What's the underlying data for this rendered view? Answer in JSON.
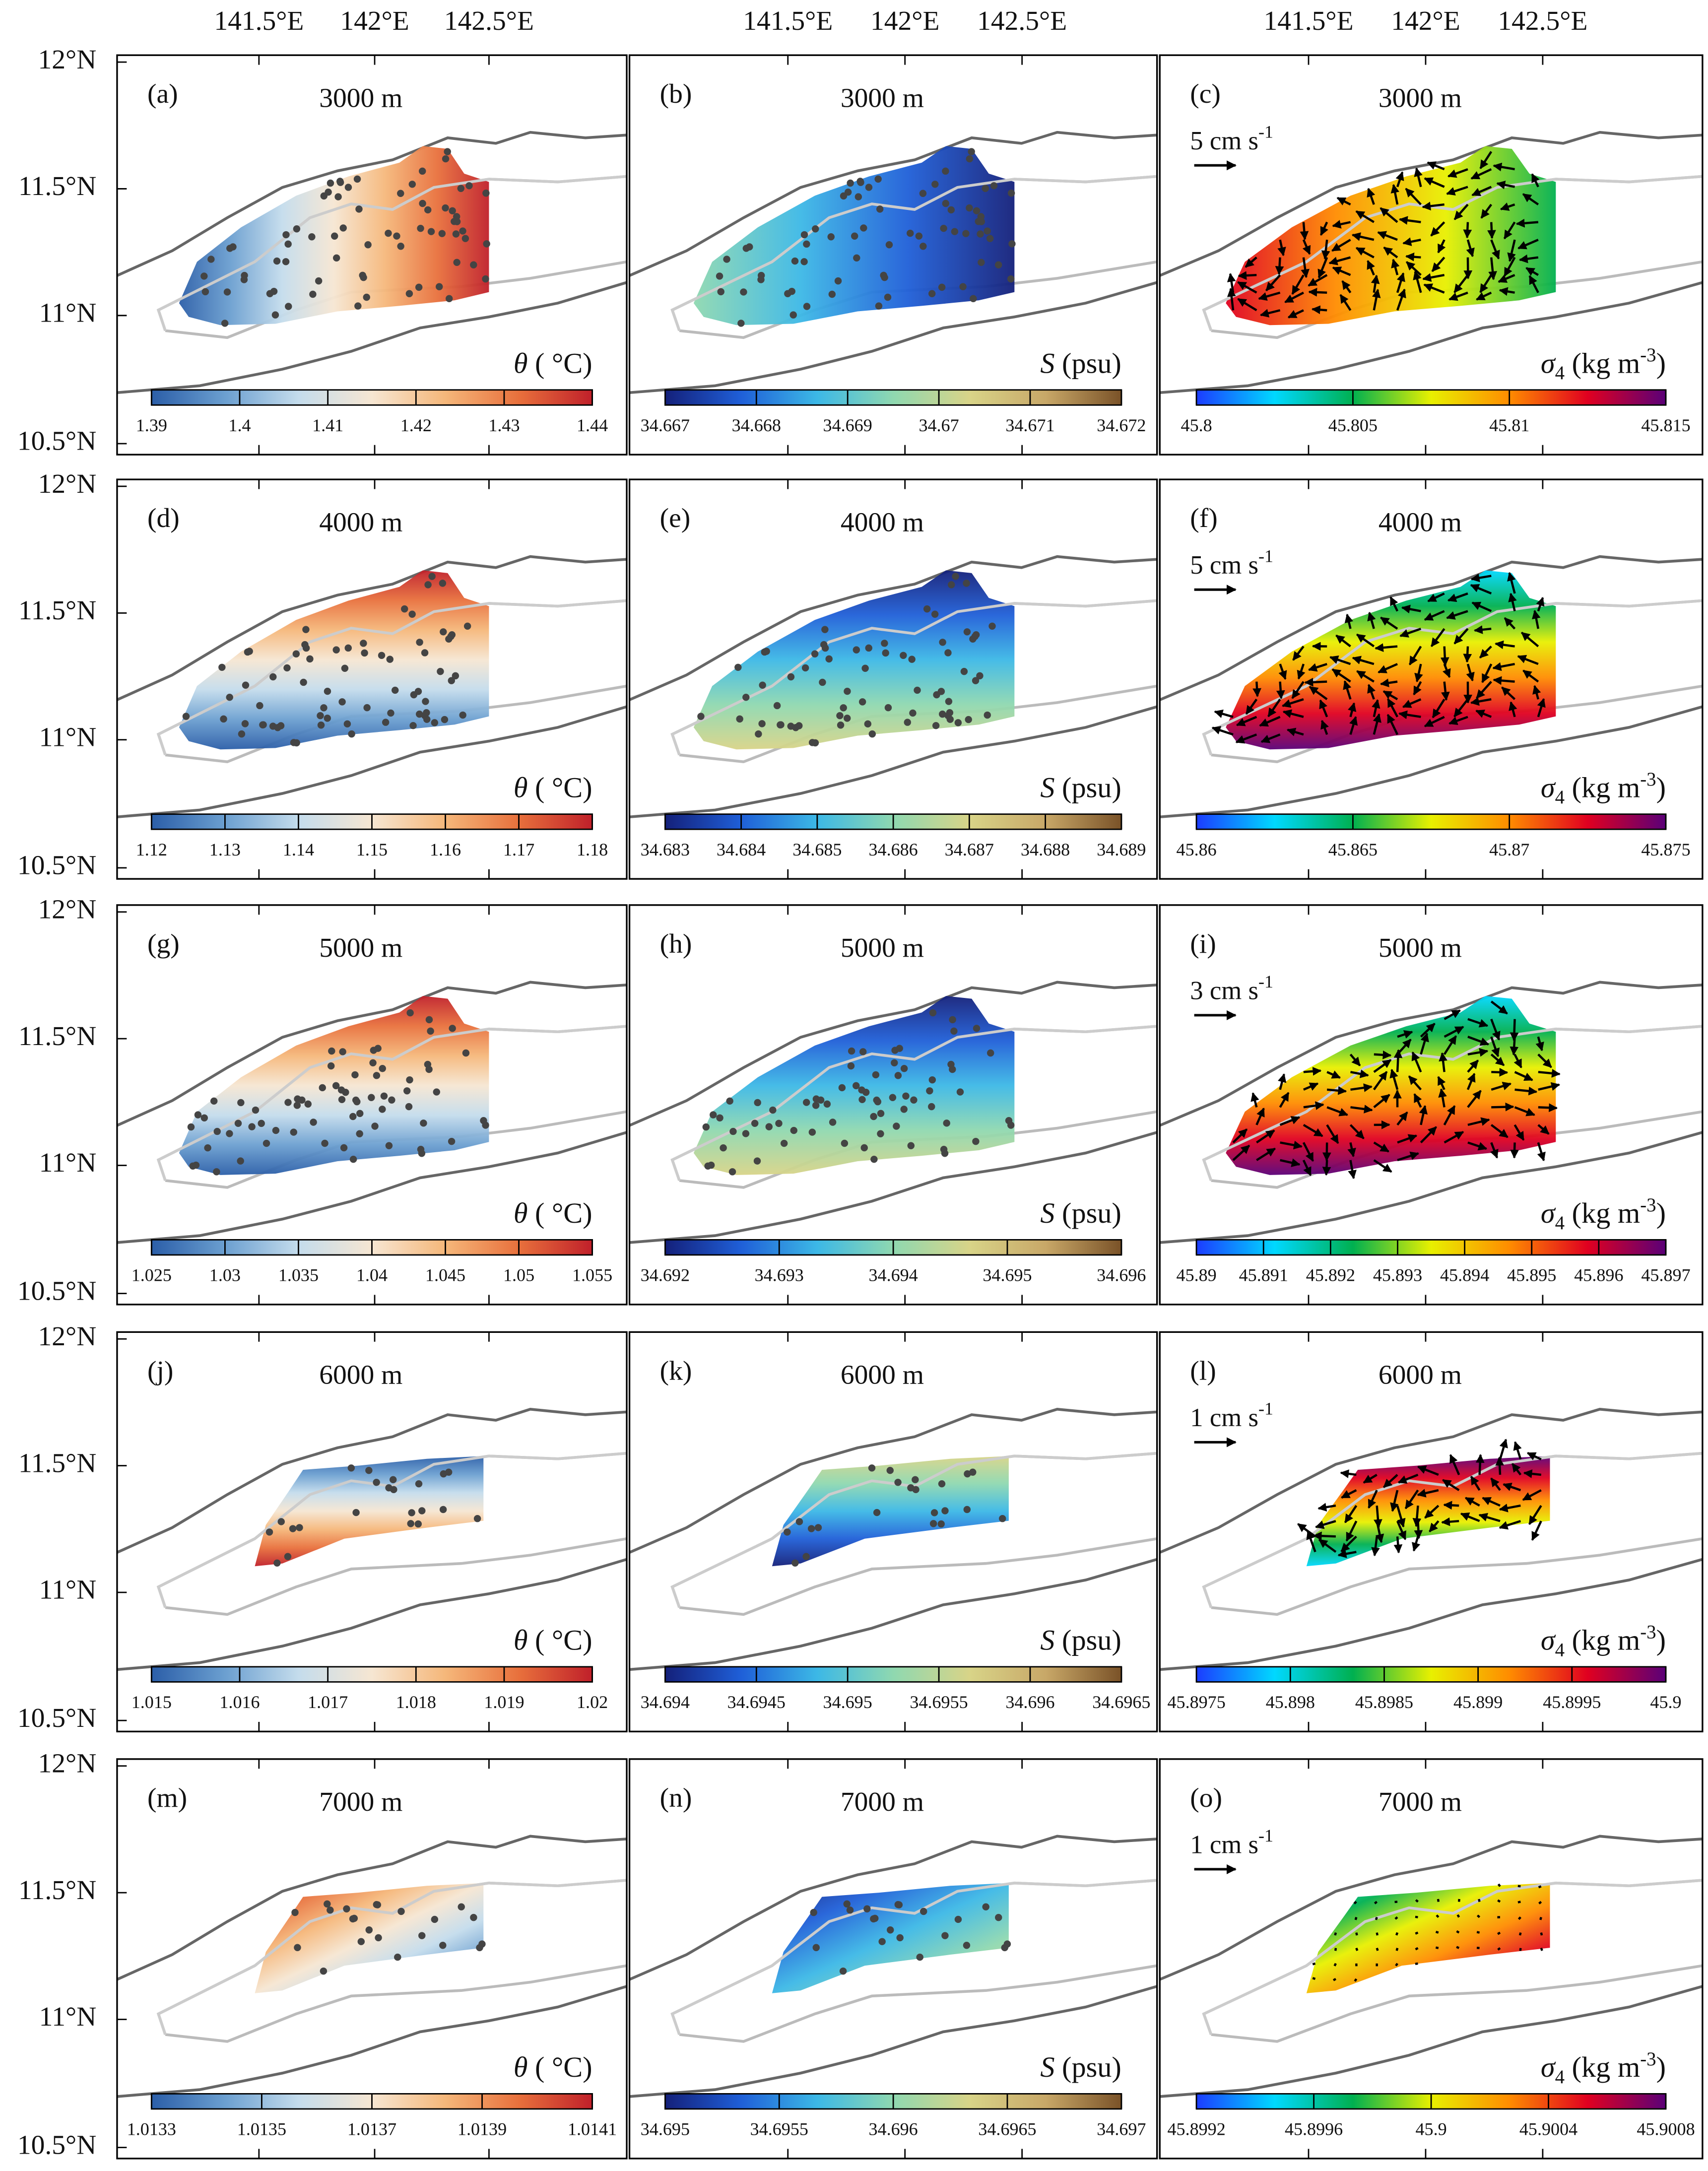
{
  "axes": {
    "lon_labels": [
      "141.5°E",
      "142°E",
      "142.5°E"
    ],
    "lat_labels": [
      "12°N",
      "11.5°N",
      "11°N",
      "10.5°N"
    ]
  },
  "rows": [
    {
      "panels": [
        {
          "label": "(a)",
          "depth": "3000 m",
          "colorbar": {
            "label": {
              "symbol": "θ",
              "unit": " ( °C)"
            },
            "ticks": [
              1.39,
              1.4,
              1.41,
              1.42,
              1.43,
              1.44
            ]
          }
        },
        {
          "label": "(b)",
          "depth": "3000 m",
          "colorbar": {
            "label": {
              "symbol": "S",
              "unit": " (psu)"
            },
            "ticks": [
              34.667,
              34.668,
              34.669,
              34.67,
              34.671,
              34.672
            ]
          }
        },
        {
          "label": "(c)",
          "depth": "3000 m",
          "scale_arrow": {
            "text": "5 cm s",
            "superscript": "-1"
          },
          "colorbar": {
            "label": {
              "symbol": "σ",
              "subscript": "4",
              "unit": " (kg m",
              "superscript": "-3",
              "close": ")"
            },
            "ticks": [
              45.8,
              45.805,
              45.81,
              45.815
            ]
          }
        }
      ]
    },
    {
      "panels": [
        {
          "label": "(d)",
          "depth": "4000 m",
          "colorbar": {
            "label": {
              "symbol": "θ",
              "unit": " ( °C)"
            },
            "ticks": [
              1.12,
              1.13,
              1.14,
              1.15,
              1.16,
              1.17,
              1.18
            ]
          }
        },
        {
          "label": "(e)",
          "depth": "4000 m",
          "colorbar": {
            "label": {
              "symbol": "S",
              "unit": " (psu)"
            },
            "ticks": [
              34.683,
              34.684,
              34.685,
              34.686,
              34.687,
              34.688,
              34.689
            ]
          }
        },
        {
          "label": "(f)",
          "depth": "4000 m",
          "scale_arrow": {
            "text": "5 cm s",
            "superscript": "-1"
          },
          "colorbar": {
            "label": {
              "symbol": "σ",
              "subscript": "4",
              "unit": " (kg m",
              "superscript": "-3",
              "close": ")"
            },
            "ticks": [
              45.86,
              45.865,
              45.87,
              45.875
            ]
          }
        }
      ]
    },
    {
      "panels": [
        {
          "label": "(g)",
          "depth": "5000 m",
          "colorbar": {
            "label": {
              "symbol": "θ",
              "unit": " ( °C)"
            },
            "ticks": [
              1.025,
              1.03,
              1.035,
              1.04,
              1.045,
              1.05,
              1.055
            ]
          }
        },
        {
          "label": "(h)",
          "depth": "5000 m",
          "colorbar": {
            "label": {
              "symbol": "S",
              "unit": " (psu)"
            },
            "ticks": [
              34.692,
              34.693,
              34.694,
              34.695,
              34.696
            ]
          }
        },
        {
          "label": "(i)",
          "depth": "5000 m",
          "scale_arrow": {
            "text": "3 cm s",
            "superscript": "-1"
          },
          "colorbar": {
            "label": {
              "symbol": "σ",
              "subscript": "4",
              "unit": " (kg m",
              "superscript": "-3",
              "close": ")"
            },
            "ticks": [
              45.89,
              45.891,
              45.892,
              45.893,
              45.894,
              45.895,
              45.896,
              45.897
            ]
          }
        }
      ]
    },
    {
      "panels": [
        {
          "label": "(j)",
          "depth": "6000 m",
          "colorbar": {
            "label": {
              "symbol": "θ",
              "unit": " ( °C)"
            },
            "ticks": [
              1.015,
              1.016,
              1.017,
              1.018,
              1.019,
              1.02
            ]
          }
        },
        {
          "label": "(k)",
          "depth": "6000 m",
          "colorbar": {
            "label": {
              "symbol": "S",
              "unit": " (psu)"
            },
            "ticks": [
              34.694,
              34.6945,
              34.695,
              34.6955,
              34.696,
              34.6965
            ]
          }
        },
        {
          "label": "(l)",
          "depth": "6000 m",
          "scale_arrow": {
            "text": "1 cm s",
            "superscript": "-1"
          },
          "colorbar": {
            "label": {
              "symbol": "σ",
              "subscript": "4",
              "unit": " (kg m",
              "superscript": "-3",
              "close": ")"
            },
            "ticks": [
              45.8975,
              45.898,
              45.8985,
              45.899,
              45.8995,
              45.9
            ]
          }
        }
      ]
    },
    {
      "panels": [
        {
          "label": "(m)",
          "depth": "7000 m",
          "colorbar": {
            "label": {
              "symbol": "θ",
              "unit": " ( °C)"
            },
            "ticks": [
              1.0133,
              1.0135,
              1.0137,
              1.0139,
              1.0141
            ]
          }
        },
        {
          "label": "(n)",
          "depth": "7000 m",
          "colorbar": {
            "label": {
              "symbol": "S",
              "unit": " (psu)"
            },
            "ticks": [
              34.695,
              34.6955,
              34.696,
              34.6965,
              34.697
            ]
          }
        },
        {
          "label": "(o)",
          "depth": "7000 m",
          "scale_arrow": {
            "text": "1 cm s",
            "superscript": "-1"
          },
          "colorbar": {
            "label": {
              "symbol": "σ",
              "subscript": "4",
              "unit": " (kg m",
              "superscript": "-3",
              "close": ")"
            },
            "ticks": [
              45.8992,
              45.8996,
              45.9,
              45.9004,
              45.9008
            ]
          }
        }
      ]
    }
  ]
}
